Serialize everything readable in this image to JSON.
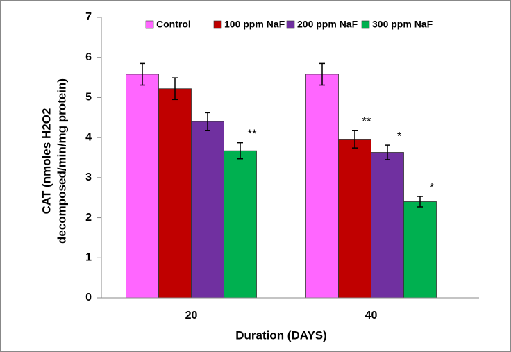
{
  "chart_data": {
    "type": "bar",
    "x_label": "Duration (DAYS)",
    "y_label": [
      "CAT (nmoles H2O2",
      "decomposed/min/mg protein)"
    ],
    "categories": [
      "20",
      "40"
    ],
    "series": [
      {
        "name": "Control",
        "color": "#ff66ff",
        "values": [
          5.58,
          5.58
        ],
        "errors": [
          0.27,
          0.27
        ],
        "significance": [
          null,
          null
        ]
      },
      {
        "name": "100 ppm NaF",
        "color": "#c00000",
        "values": [
          5.22,
          3.96
        ],
        "errors": [
          0.27,
          0.22
        ],
        "significance": [
          null,
          "**"
        ]
      },
      {
        "name": "200 ppm NaF",
        "color": "#7030a0",
        "values": [
          4.4,
          3.63
        ],
        "errors": [
          0.22,
          0.18
        ],
        "significance": [
          null,
          "*"
        ]
      },
      {
        "name": "300 ppm NaF",
        "color": "#00b050",
        "values": [
          3.67,
          2.4
        ],
        "errors": [
          0.2,
          0.13
        ],
        "significance": [
          "**",
          "*"
        ]
      }
    ],
    "ylim": [
      0,
      7
    ],
    "yticks": [
      0,
      1,
      2,
      3,
      4,
      5,
      6,
      7
    ],
    "grid": false,
    "legend": "top"
  }
}
